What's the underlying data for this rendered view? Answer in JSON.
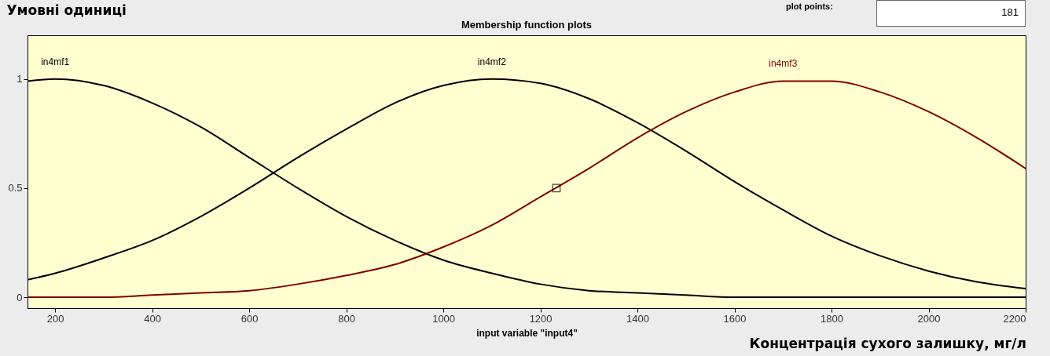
{
  "chart_data": {
    "type": "line",
    "title": "Membership function plots",
    "xlabel": "input variable \"input4\"",
    "ylabel": "Умовні одиниці",
    "annotations": [
      "Концентрація сухого залишку, мг/л",
      "plot points:",
      "181"
    ],
    "x": [
      143,
      200,
      300,
      400,
      500,
      600,
      700,
      800,
      900,
      1000,
      1100,
      1200,
      1300,
      1400,
      1500,
      1600,
      1700,
      1800,
      1900,
      2000,
      2100,
      2200
    ],
    "series": [
      {
        "name": "in4mf1",
        "color": "#000000",
        "values": [
          0.99,
          1,
          0.97,
          0.89,
          0.78,
          0.64,
          0.5,
          0.37,
          0.26,
          0.17,
          0.11,
          0.06,
          0.03,
          0.02,
          0.01,
          0,
          0,
          0,
          0,
          0,
          0,
          0
        ]
      },
      {
        "name": "in4mf2",
        "color": "#000000",
        "values": [
          0.08,
          0.11,
          0.18,
          0.26,
          0.37,
          0.5,
          0.64,
          0.77,
          0.89,
          0.97,
          1,
          0.98,
          0.91,
          0.8,
          0.67,
          0.53,
          0.4,
          0.28,
          0.19,
          0.12,
          0.07,
          0.04
        ]
      },
      {
        "name": "in4mf3",
        "color": "#800000",
        "values": [
          0,
          0,
          0,
          0.01,
          0.02,
          0.03,
          0.06,
          0.1,
          0.15,
          0.23,
          0.33,
          0.46,
          0.59,
          0.73,
          0.85,
          0.94,
          0.99,
          0.99,
          0.94,
          0.85,
          0.73,
          0.59
        ]
      },
      {
        "type": "scatter",
        "marker": "square",
        "color": "#000000",
        "x": [
          1233
        ],
        "values": [
          0.5
        ]
      }
    ],
    "xlim": [
      143,
      2200
    ],
    "xticks": [
      200,
      400,
      600,
      800,
      1000,
      1200,
      1400,
      1600,
      1800,
      2000,
      2200
    ],
    "ylim": [
      -0.05,
      1.2
    ],
    "yticks": [
      0,
      0.5,
      1
    ],
    "grid": false
  }
}
